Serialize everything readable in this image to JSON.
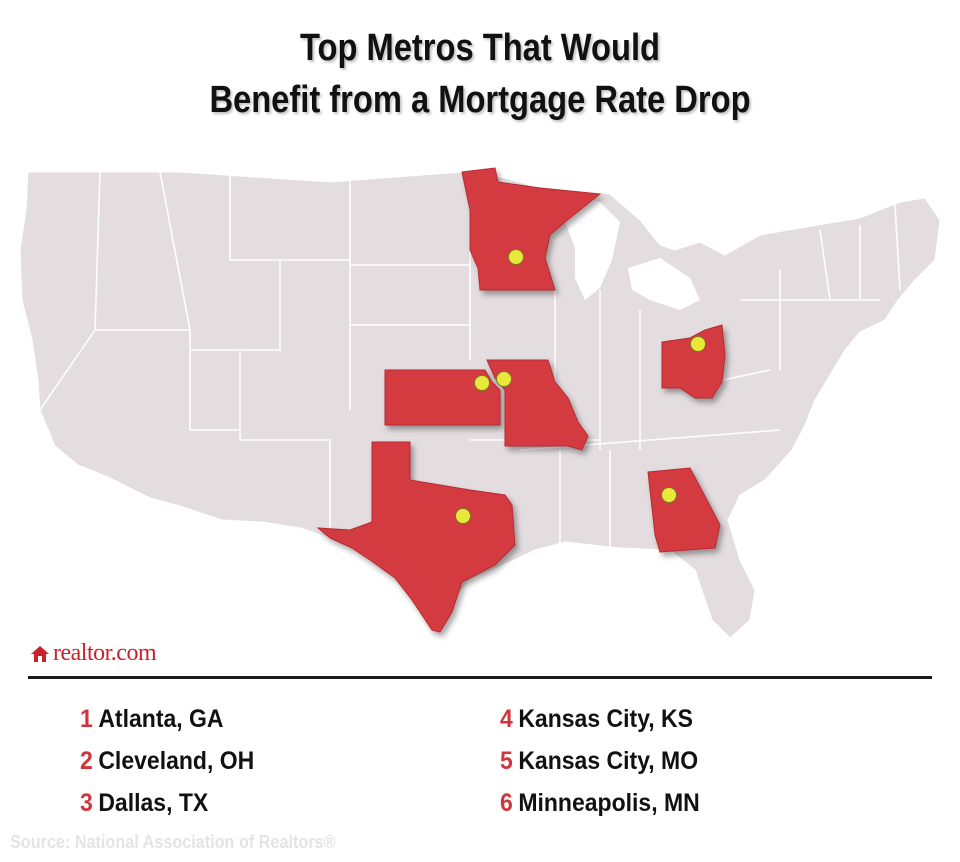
{
  "title": {
    "line1": "Top Metros That Would",
    "line2": "Benefit from a Mortgage Rate Drop"
  },
  "map": {
    "base_color": "#e3dde0",
    "border_color": "#ffffff",
    "highlight_color": "#d43a3f",
    "marker_color": "#e8e83a",
    "highlighted_states": [
      "MN",
      "OH",
      "KS",
      "MO",
      "TX",
      "GA"
    ]
  },
  "logo": {
    "text": "realtor.com",
    "icon": "house-icon"
  },
  "metros_left": [
    {
      "rank": "1",
      "name": "Atlanta, GA"
    },
    {
      "rank": "2",
      "name": "Cleveland, OH"
    },
    {
      "rank": "3",
      "name": "Dallas, TX"
    }
  ],
  "metros_right": [
    {
      "rank": "4",
      "name": "Kansas City, KS"
    },
    {
      "rank": "5",
      "name": "Kansas City, MO"
    },
    {
      "rank": "6",
      "name": "Minneapolis, MN"
    }
  ],
  "source": "Source: National Association of Realtors®"
}
